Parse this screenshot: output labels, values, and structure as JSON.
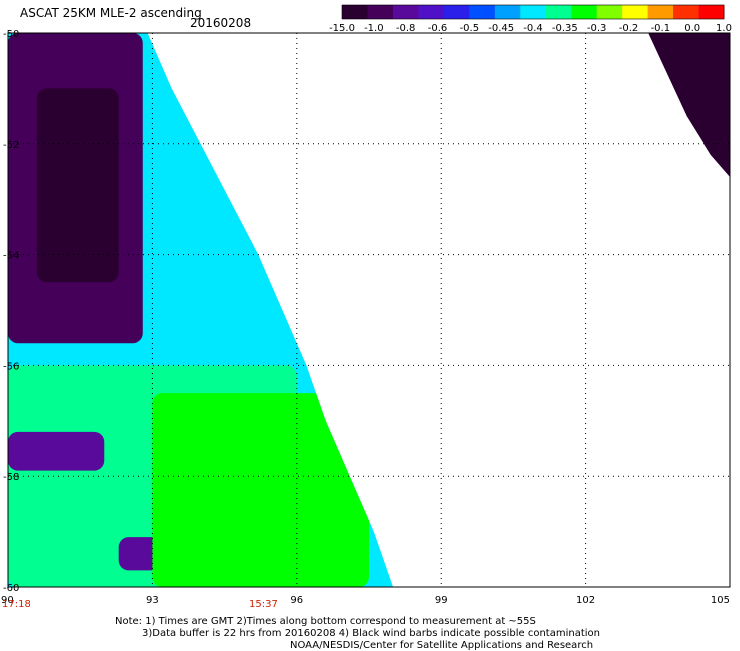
{
  "chart_data": {
    "type": "heatmap",
    "title": "ASCAT 25KM MLE-2 ascending",
    "date": "20160208",
    "xlabel": "",
    "ylabel": "",
    "x_ticks": [
      "90",
      "93",
      "96",
      "99",
      "102",
      "105"
    ],
    "y_ticks": [
      "-50",
      "-52",
      "-54",
      "-56",
      "-58",
      "-60"
    ],
    "xlim": [
      90,
      105
    ],
    "ylim": [
      -60,
      -50
    ],
    "grid": true,
    "colorbar": {
      "labels": [
        "-15.0",
        "-1.0",
        "-0.8",
        "-0.6",
        "-0.5",
        "-0.45",
        "-0.4",
        "-0.35",
        "-0.3",
        "-0.2",
        "-0.1",
        "0.0",
        "1.0"
      ],
      "colors": [
        "#2a0030",
        "#45005a",
        "#5a0a9a",
        "#5010c8",
        "#2a20ea",
        "#0050ff",
        "#00a0ff",
        "#00e8ff",
        "#00ff90",
        "#00ff00",
        "#80ff00",
        "#ffff00",
        "#ff9a00",
        "#ff3000",
        "#ff0000"
      ]
    },
    "swath_left": {
      "edge": [
        [
          92.9,
          -50
        ],
        [
          93.4,
          -51
        ],
        [
          94.0,
          -52
        ],
        [
          94.6,
          -53
        ],
        [
          95.2,
          -54
        ],
        [
          95.7,
          -55
        ],
        [
          96.2,
          -56
        ],
        [
          96.6,
          -57
        ],
        [
          97.1,
          -58
        ],
        [
          97.6,
          -59
        ],
        [
          98.0,
          -60
        ]
      ],
      "field": [
        {
          "lat_min": -50,
          "lat_max": -55.6,
          "lon_min": 90,
          "lon_max": 92.8,
          "level": "-1.0"
        },
        {
          "lat_min": -51,
          "lat_max": -54.5,
          "lon_min": 90.6,
          "lon_max": 92.3,
          "level": "-15.0"
        },
        {
          "lat_min": -56,
          "lat_max": -60,
          "lon_min": 90,
          "lon_max": 96,
          "level": "-0.35"
        },
        {
          "lat_min": -57.2,
          "lat_max": -57.9,
          "lon_min": 90,
          "lon_max": 92,
          "level": "-0.8"
        },
        {
          "lat_min": -59.1,
          "lat_max": -59.7,
          "lon_min": 92.3,
          "lon_max": 94.6,
          "level": "-0.8"
        },
        {
          "lat_min": -56.5,
          "lat_max": -60,
          "lon_min": 93,
          "lon_max": 97.5,
          "level": "-0.3"
        }
      ]
    },
    "swath_right": {
      "edge": [
        [
          103.3,
          -50
        ],
        [
          104.1,
          -51.5
        ],
        [
          104.6,
          -52.2
        ],
        [
          105,
          -52.6
        ]
      ],
      "level": "-15.0"
    }
  },
  "times": {
    "left": "17:18",
    "mid": "15:37"
  },
  "notes": [
    "Note: 1) Times are GMT 2)Times along bottom correspond to measurement at ~55S",
    "3)Data buffer is 22 hrs from 20160208 4) Black wind barbs indicate possible contamination",
    "NOAA/NESDIS/Center for Satellite Applications and Research"
  ]
}
